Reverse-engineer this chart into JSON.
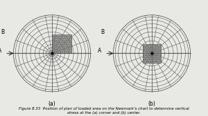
{
  "background_color": "#e8e8e4",
  "chart_bg": "#e8e8e4",
  "line_color": "#444444",
  "fill_color": "#888888",
  "dot_color": "#000000",
  "radii": [
    0.08,
    0.15,
    0.23,
    0.33,
    0.44,
    0.56,
    0.67,
    0.77,
    0.87,
    0.95,
    1.0
  ],
  "n_sectors": 18,
  "title": "Figure 8.33  Position of plan of loaded area on the Newmark’s chart to determine vertical\nstress at the (a) corner and (b) center.",
  "label_a": "A",
  "label_b": "B",
  "label_fig_a": "(a)",
  "label_fig_b": "(b)"
}
